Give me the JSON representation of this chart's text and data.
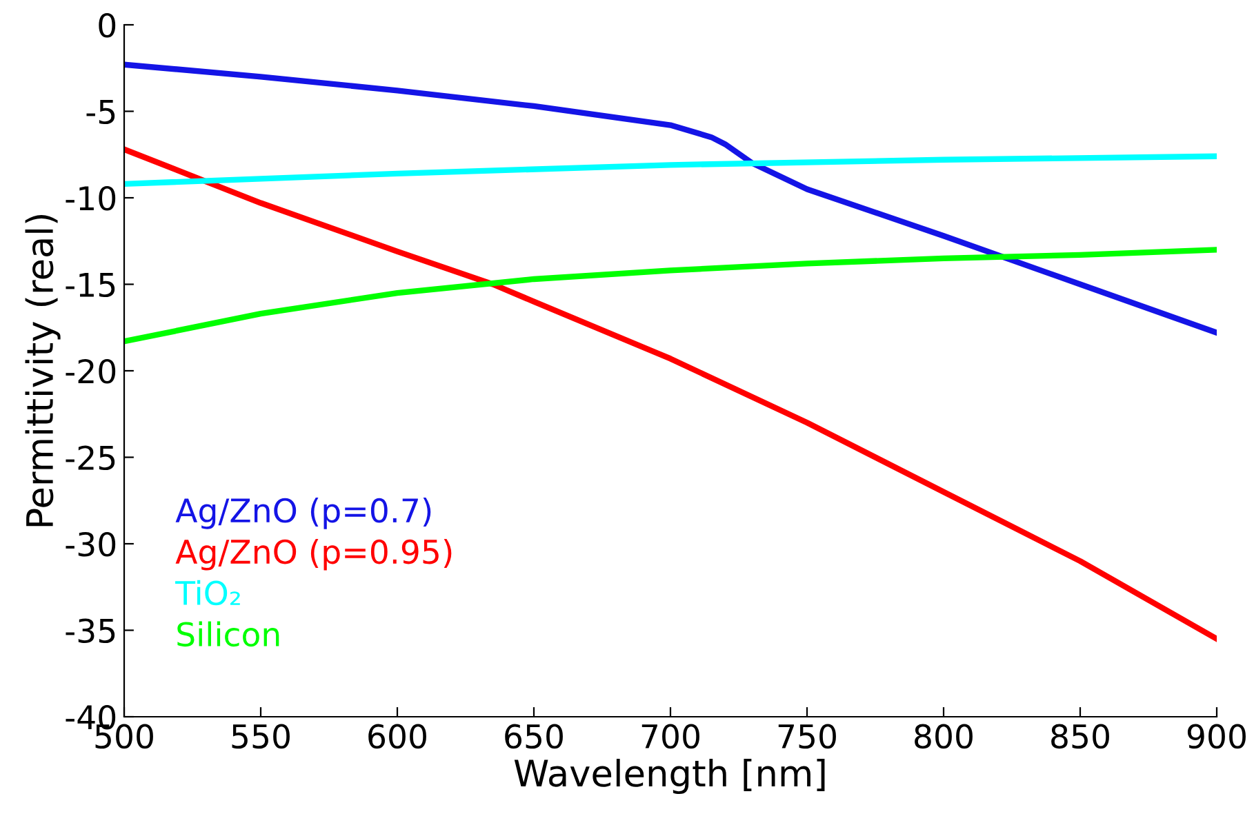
{
  "chart_data": {
    "type": "line",
    "xlabel": "Wavelength [nm]",
    "ylabel": "Permittivity (real)",
    "xlim": [
      500,
      900
    ],
    "xticks": [
      500,
      550,
      600,
      650,
      700,
      750,
      800,
      850,
      900
    ],
    "ylim": [
      -40,
      0
    ],
    "yticks": [
      -40,
      -35,
      -30,
      -25,
      -20,
      -15,
      -10,
      -5,
      0
    ],
    "legend": "bottom left",
    "grid": false,
    "series": [
      {
        "name": "Ag/ZnO (p=0.7)",
        "color": "#1414e6",
        "x": [
          500,
          550,
          600,
          650,
          700,
          715,
          720,
          730,
          750,
          800,
          850,
          900
        ],
        "values": [
          -2.3,
          -3.0,
          -3.8,
          -4.7,
          -5.8,
          -6.5,
          -6.9,
          -8.0,
          -9.5,
          -12.2,
          -15.0,
          -17.8
        ]
      },
      {
        "name": "Ag/ZnO (p=0.95)",
        "color": "#ff0000",
        "x": [
          500,
          550,
          600,
          635,
          650,
          700,
          750,
          800,
          850,
          900
        ],
        "values": [
          -7.2,
          -10.3,
          -13.1,
          -15.0,
          -16.0,
          -19.3,
          -23.0,
          -27.0,
          -31.0,
          -35.5
        ]
      },
      {
        "name": "TiO₂",
        "color": "#00ffff",
        "x": [
          500,
          600,
          700,
          800,
          900
        ],
        "values": [
          -9.2,
          -8.6,
          -8.1,
          -7.8,
          -7.6
        ]
      },
      {
        "name": "Silicon",
        "color": "#00ff00",
        "x": [
          500,
          550,
          600,
          650,
          700,
          750,
          800,
          850,
          900
        ],
        "values": [
          -18.3,
          -16.7,
          -15.5,
          -14.7,
          -14.2,
          -13.8,
          -13.5,
          -13.3,
          -13.0
        ]
      }
    ]
  }
}
